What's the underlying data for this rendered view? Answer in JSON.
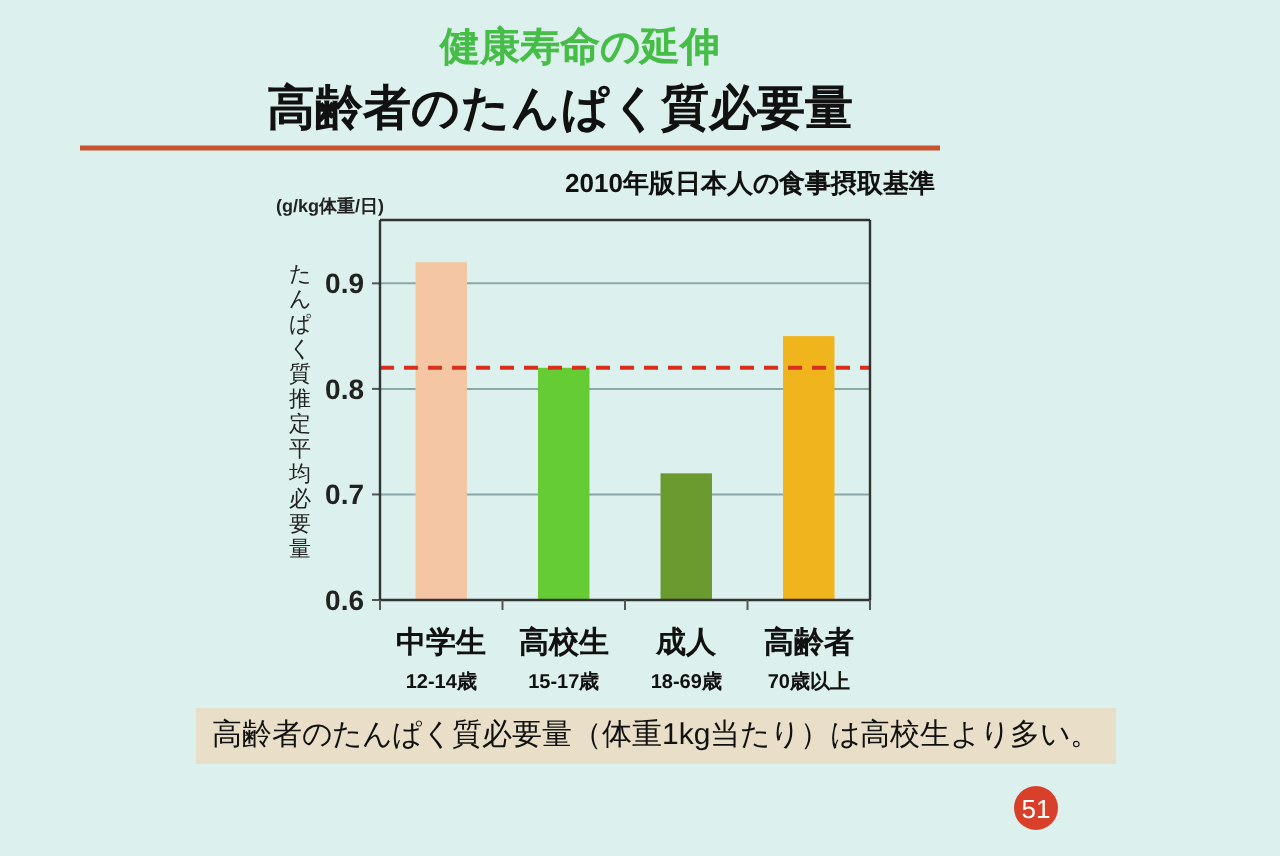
{
  "chart_data": {
    "type": "bar",
    "title": "高齢者のたんぱく質必要量",
    "subtitle": "2010年版日本人の食事摂取基準",
    "ylabel": "たんぱく質推定平均必要量",
    "annotations": [
      "健康寿命の延伸",
      "(g/kg体重/日)",
      "高齢者のたんぱく質必要量（体重1kg当たり）は高校生より多い。",
      "51"
    ],
    "categories": [
      "中学生\n12-14歳",
      "高校生\n15-17歳",
      "成人\n18-69歳",
      "高齢者\n70歳以上"
    ],
    "values": [
      0.92,
      0.82,
      0.72,
      0.85
    ],
    "colors": [
      "#f4c6a4",
      "#66cc33",
      "#6b9a2e",
      "#f0b41c"
    ],
    "ylim": [
      0.6,
      0.96
    ],
    "yticks": [
      0.6,
      0.7,
      0.8,
      0.9
    ],
    "grid": "y",
    "ref_lines": [
      {
        "axis": "y",
        "value": 0.82,
        "color": "#d8301c",
        "line_style": "dashed"
      }
    ]
  }
}
